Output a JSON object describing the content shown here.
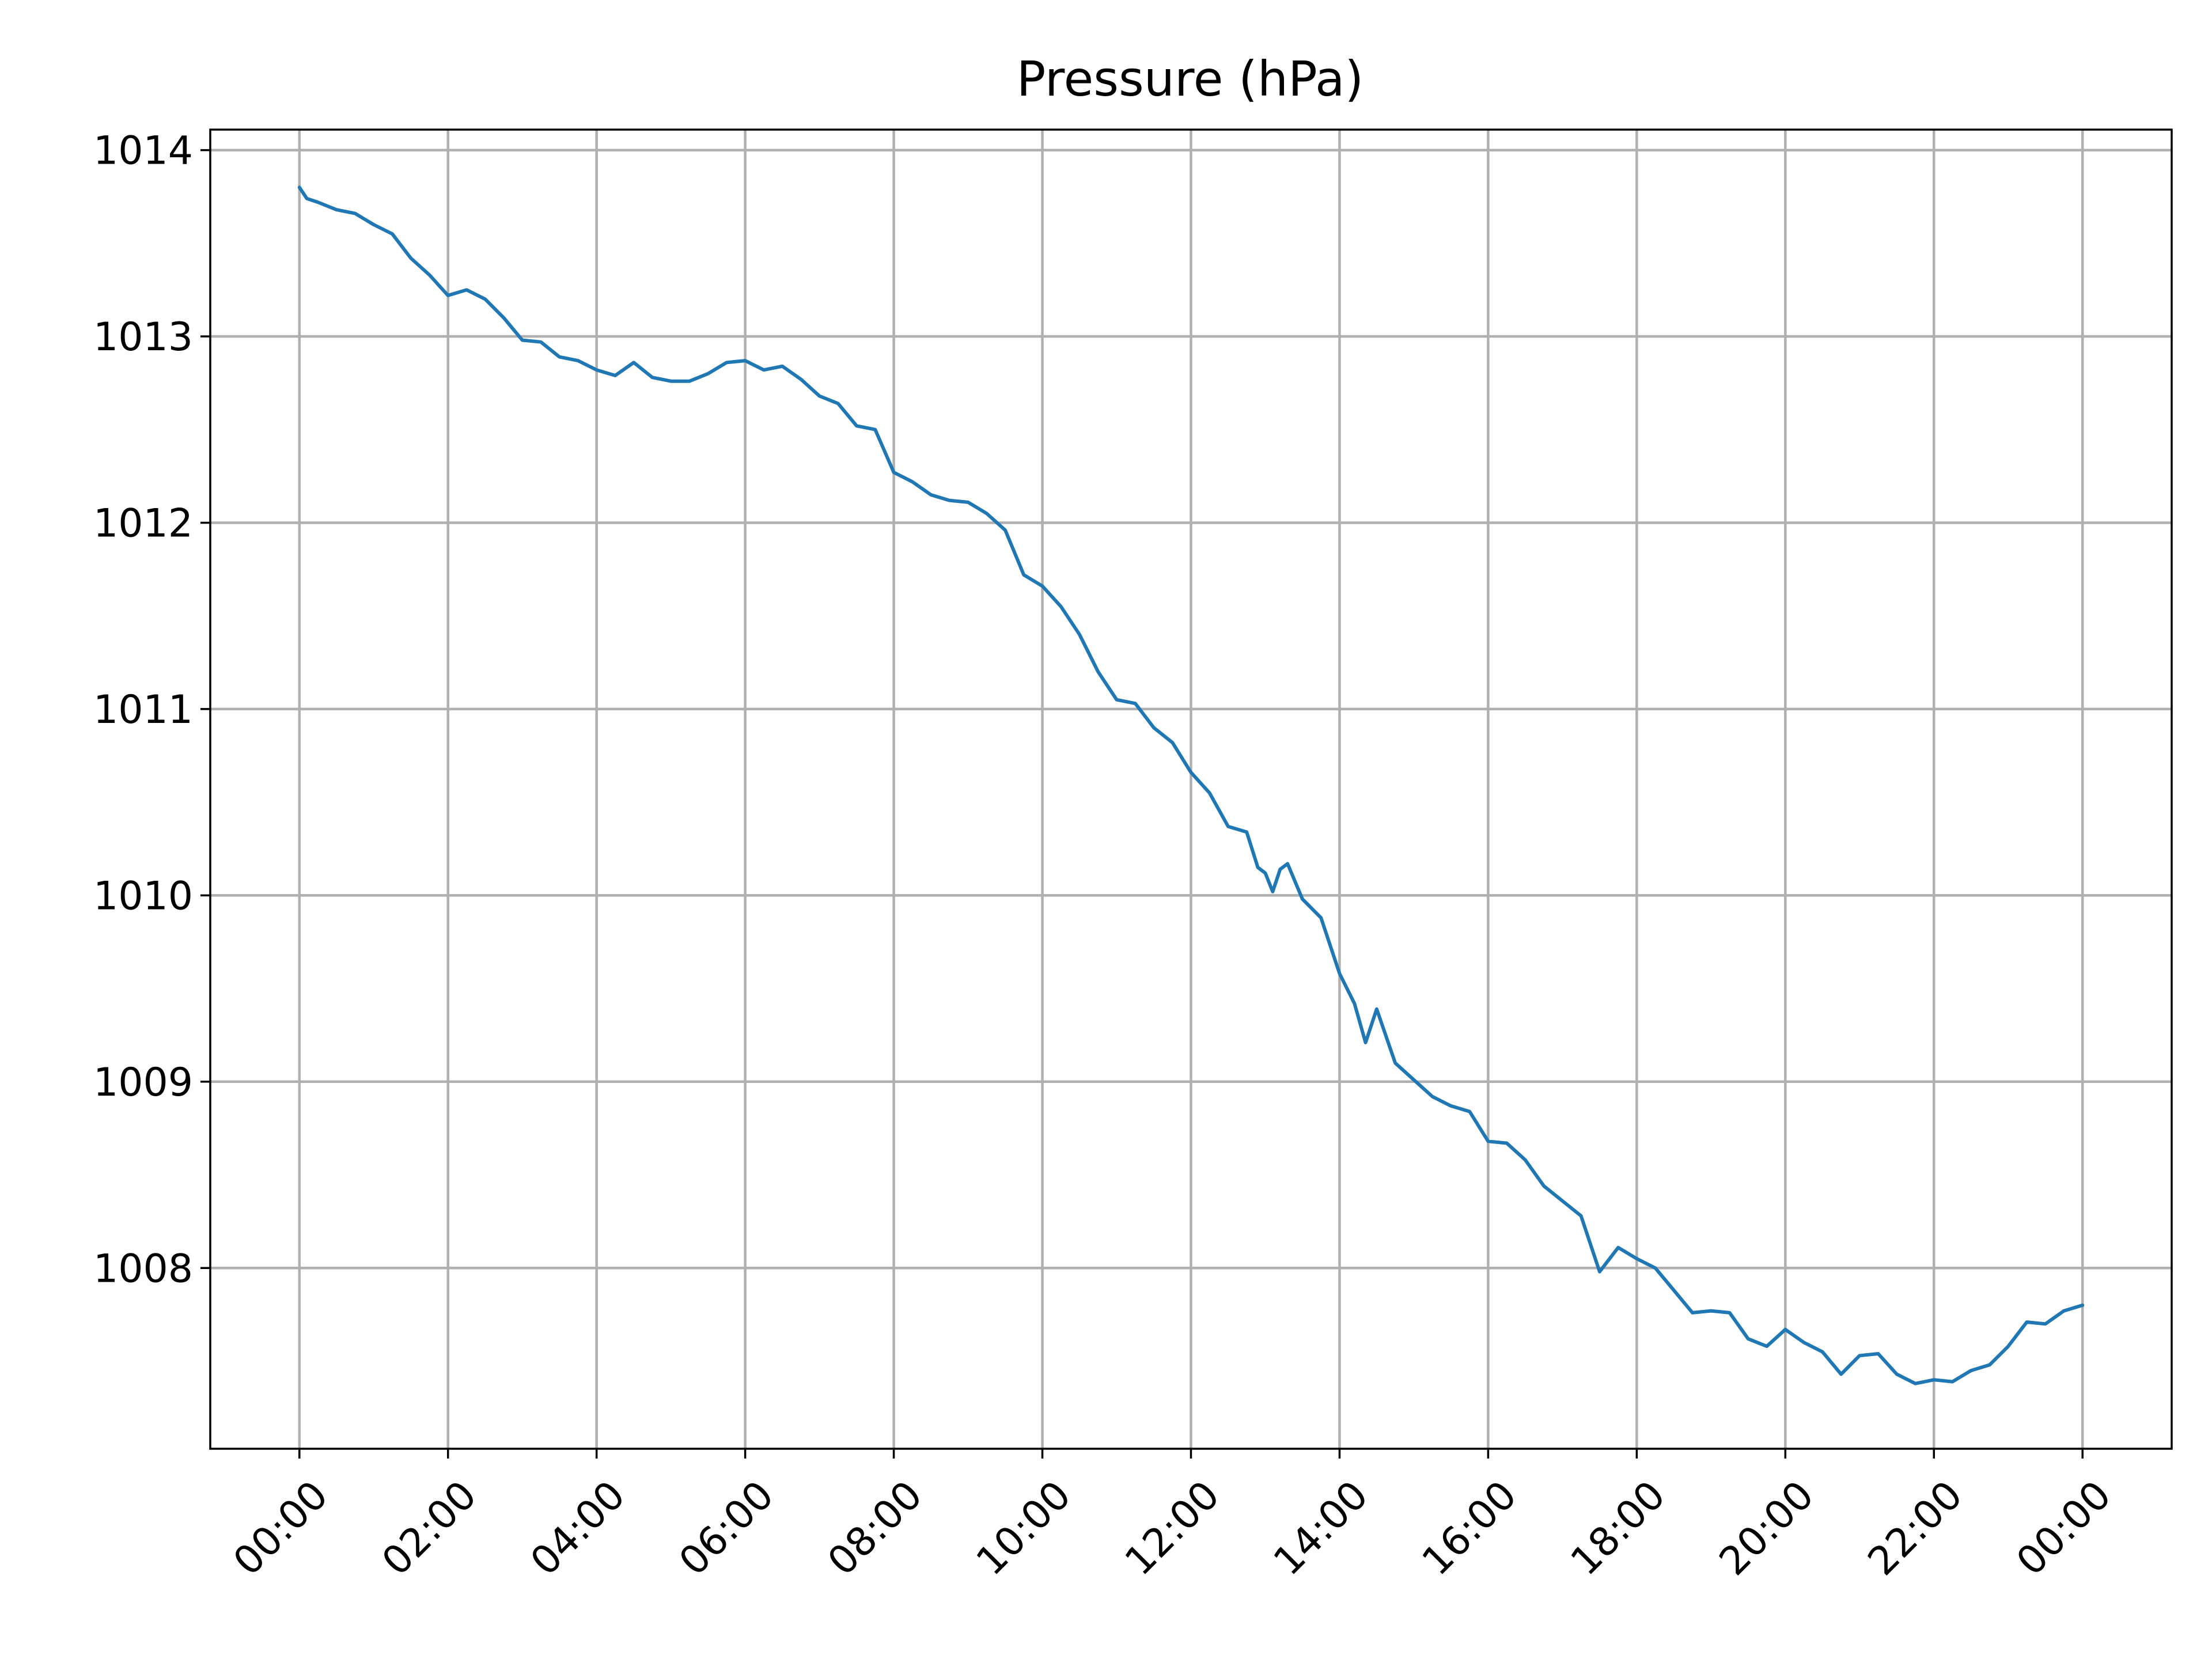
{
  "chart_data": {
    "type": "line",
    "title": "Pressure (hPa)",
    "xlabel": "",
    "ylabel": "",
    "x_tick_labels": [
      "00:00",
      "02:00",
      "04:00",
      "06:00",
      "08:00",
      "10:00",
      "12:00",
      "14:00",
      "16:00",
      "18:00",
      "20:00",
      "22:00",
      "00:00"
    ],
    "x_tick_hours": [
      0,
      2,
      4,
      6,
      8,
      10,
      12,
      14,
      16,
      18,
      20,
      22,
      24
    ],
    "xlim_hours": [
      -1.2,
      25.2
    ],
    "y_ticks": [
      1008,
      1009,
      1010,
      1011,
      1012,
      1013,
      1014
    ],
    "y_tick_labels": [
      "1008",
      "1009",
      "1010",
      "1011",
      "1012",
      "1013",
      "1014"
    ],
    "ylim": [
      1007.03,
      1014.11
    ],
    "grid": true,
    "line_color": "#1f77b4",
    "series": [
      {
        "x_hours": [
          0,
          0.1,
          0.25,
          0.5,
          0.75,
          1.0,
          1.25,
          1.5,
          1.75,
          2.0,
          2.25,
          2.5,
          2.75,
          3.0,
          3.25,
          3.5,
          3.75,
          4.0,
          4.25,
          4.5,
          4.75,
          5.0,
          5.25,
          5.5,
          5.75,
          6.0,
          6.25,
          6.5,
          6.75,
          7.0,
          7.25,
          7.5,
          7.75,
          8.0,
          8.25,
          8.5,
          8.75,
          9.0,
          9.25,
          9.5,
          9.75,
          10.0,
          10.25,
          10.5,
          10.75,
          11.0,
          11.25,
          11.5,
          11.75,
          12.0,
          12.25,
          12.5,
          12.75,
          12.9,
          13.0,
          13.1,
          13.2,
          13.3,
          13.5,
          13.75,
          14.0,
          14.2,
          14.35,
          14.5,
          14.75,
          15.0,
          15.25,
          15.5,
          15.75,
          16.0,
          16.25,
          16.5,
          16.75,
          17.0,
          17.25,
          17.4,
          17.5,
          17.75,
          18.0,
          18.25,
          18.5,
          18.75,
          19.0,
          19.25,
          19.5,
          19.75,
          20.0,
          20.25,
          20.5,
          20.75,
          21.0,
          21.25,
          21.5,
          21.75,
          22.0,
          22.25,
          22.5,
          22.75,
          23.0,
          23.25,
          23.5,
          23.75,
          24.0
        ],
        "values": [
          1013.8,
          1013.74,
          1013.72,
          1013.68,
          1013.66,
          1013.6,
          1013.55,
          1013.42,
          1013.33,
          1013.22,
          1013.25,
          1013.2,
          1013.1,
          1012.98,
          1012.97,
          1012.89,
          1012.87,
          1012.82,
          1012.79,
          1012.86,
          1012.78,
          1012.76,
          1012.76,
          1012.8,
          1012.86,
          1012.87,
          1012.82,
          1012.84,
          1012.77,
          1012.68,
          1012.64,
          1012.52,
          1012.5,
          1012.27,
          1012.22,
          1012.15,
          1012.12,
          1012.11,
          1012.05,
          1011.96,
          1011.72,
          1011.66,
          1011.55,
          1011.4,
          1011.2,
          1011.05,
          1011.03,
          1010.9,
          1010.82,
          1010.66,
          1010.55,
          1010.37,
          1010.34,
          1010.15,
          1010.12,
          1010.02,
          1010.14,
          1010.17,
          1009.98,
          1009.88,
          1009.58,
          1009.42,
          1009.21,
          1009.39,
          1009.1,
          1009.01,
          1008.92,
          1008.87,
          1008.84,
          1008.68,
          1008.67,
          1008.58,
          1008.44,
          1008.36,
          1008.28,
          1008.1,
          1007.98,
          1008.11,
          1008.05,
          1008.0,
          1007.88,
          1007.76,
          1007.77,
          1007.76,
          1007.62,
          1007.58,
          1007.67,
          1007.6,
          1007.55,
          1007.43,
          1007.53,
          1007.54,
          1007.43,
          1007.38,
          1007.4,
          1007.39,
          1007.45,
          1007.48,
          1007.58,
          1007.71,
          1007.7,
          1007.77,
          1007.8
        ]
      }
    ]
  }
}
